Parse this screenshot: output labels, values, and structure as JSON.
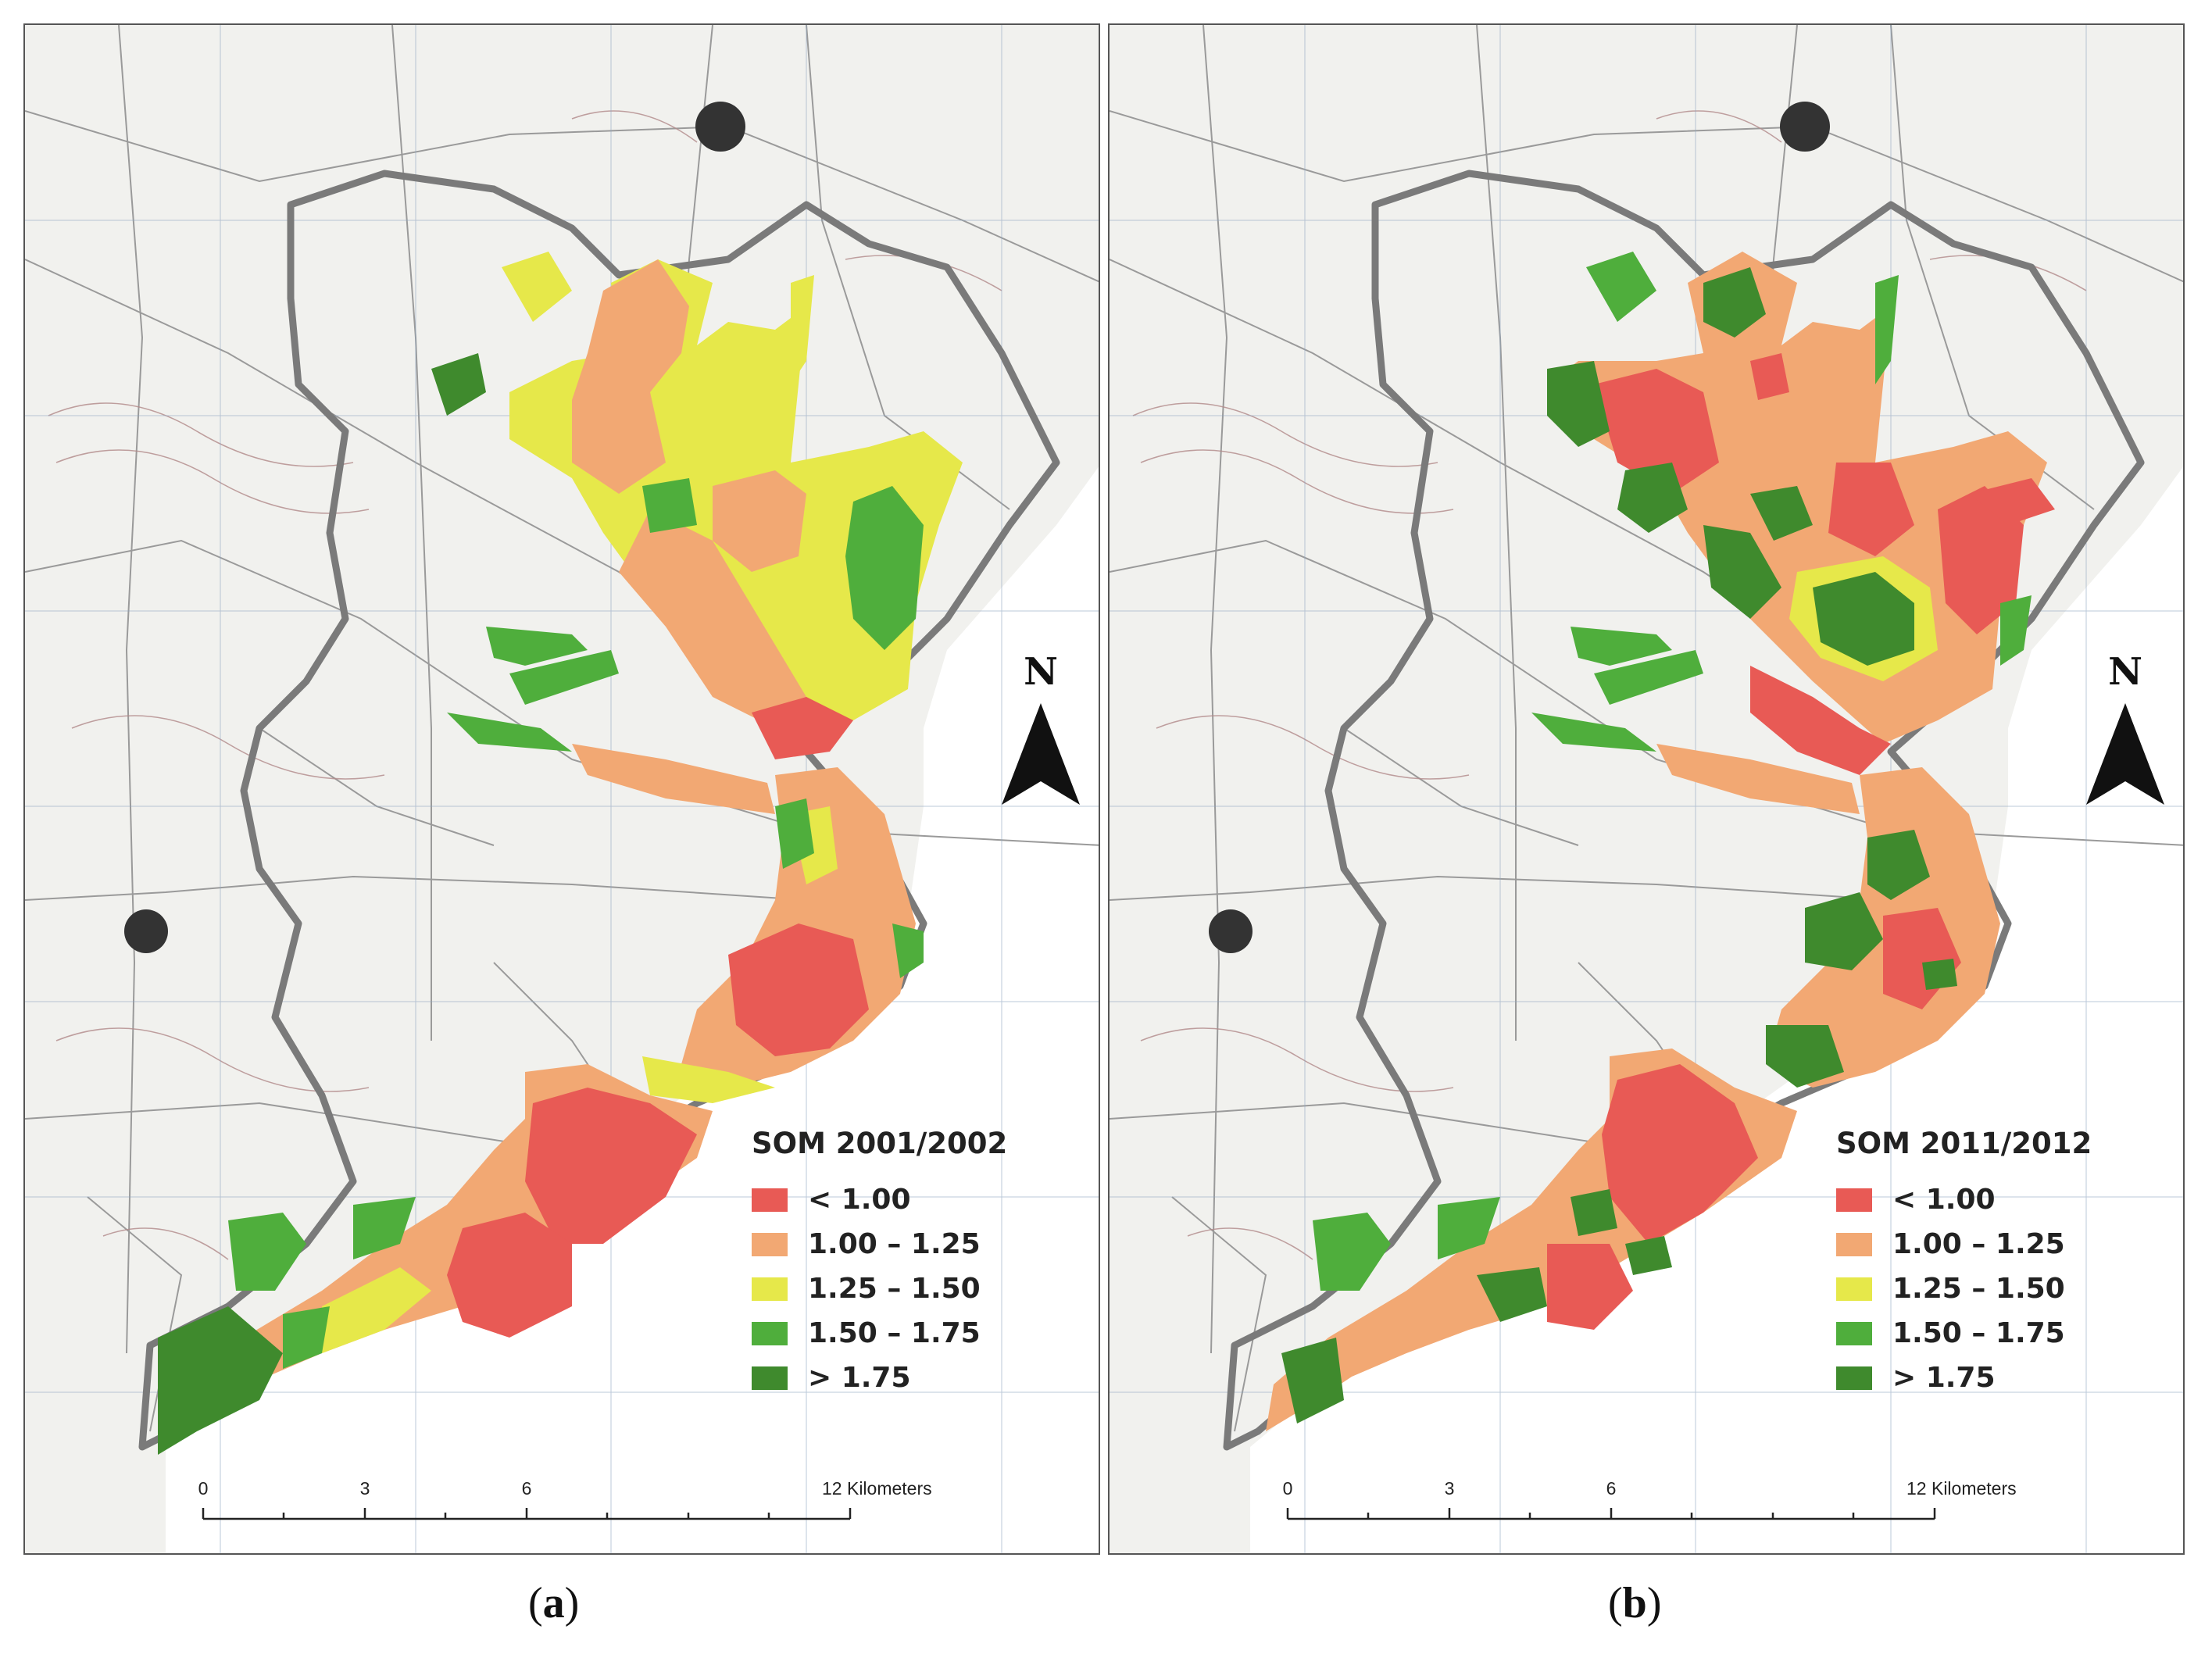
{
  "colors": {
    "lt_1_00": "#e85a55",
    "c1_00_1_25": "#f2a873",
    "c1_25_1_50": "#e6e84a",
    "c1_50_1_75": "#4fae3c",
    "gt_1_75": "#3f8a2d",
    "basemap_bg": "#f1f1ee",
    "basemap_lines": "#8a8a8a",
    "boundary": "#7a7a7a"
  },
  "legend_classes": [
    "< 1.00",
    "1.00 – 1.25",
    "1.25 – 1.50",
    "1.50 – 1.75",
    "> 1.75"
  ],
  "panels": [
    {
      "caption_open": "(",
      "caption_letter": "a",
      "caption_close": ")",
      "legend_title": "SOM 2001/2002",
      "north_label": "N",
      "scale": {
        "labels": [
          "0",
          "3",
          "6"
        ],
        "units": "12 Kilometers"
      }
    },
    {
      "caption_open": "(",
      "caption_letter": "b",
      "caption_close": ")",
      "legend_title": "SOM 2011/2012",
      "north_label": "N",
      "scale": {
        "labels": [
          "0",
          "3",
          "6"
        ],
        "units": "12 Kilometers"
      }
    }
  ]
}
